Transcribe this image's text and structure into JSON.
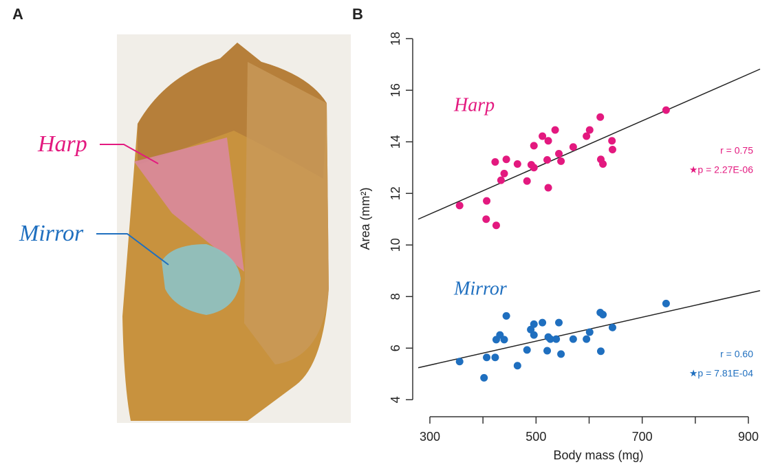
{
  "panel_a": {
    "label": "A",
    "callouts": [
      "Harp",
      "Mirror"
    ]
  },
  "chart_data": {
    "type": "scatter",
    "panel_label": "B",
    "x_label": "Body mass (mg)",
    "y_label": "Area (mm²)",
    "xlim": [
      278,
      922
    ],
    "xticks": [
      300,
      500,
      700,
      900
    ],
    "xminor_ticks": [
      400,
      600,
      800
    ],
    "ylim": [
      3.5,
      18.3
    ],
    "yticks": [
      4,
      6,
      8,
      10,
      12,
      14,
      16,
      18
    ],
    "series": [
      {
        "name": "Harp",
        "color": "#e3197f",
        "x": [
          356,
          406,
          407,
          425,
          423,
          440,
          434,
          444,
          465,
          483,
          491,
          496,
          496,
          512,
          523,
          521,
          523,
          536,
          543,
          547,
          570,
          595,
          601,
          621,
          622,
          626,
          643,
          644,
          745
        ],
        "values": [
          11.53,
          11.0,
          11.71,
          10.76,
          13.22,
          12.77,
          12.51,
          13.32,
          13.14,
          12.48,
          13.11,
          13.85,
          13.0,
          14.22,
          14.04,
          13.3,
          12.22,
          14.46,
          13.54,
          13.25,
          13.8,
          14.22,
          14.46,
          14.96,
          13.32,
          13.14,
          14.04,
          13.7,
          15.23
        ],
        "fit": {
          "x": [
            278,
            922
          ],
          "y": [
            11.0,
            16.82
          ]
        },
        "r_label": "r = 0.75",
        "p_label": "★p = 2.27E-06"
      },
      {
        "name": "Mirror",
        "color": "#1f6fbf",
        "x": [
          356,
          407,
          402,
          423,
          425,
          432,
          440,
          444,
          465,
          483,
          490,
          496,
          496,
          512,
          521,
          523,
          527,
          538,
          543,
          547,
          570,
          595,
          601,
          621,
          626,
          622,
          644,
          745
        ],
        "values": [
          5.48,
          5.64,
          4.85,
          5.64,
          6.33,
          6.51,
          6.33,
          7.25,
          5.32,
          5.93,
          6.72,
          6.93,
          6.51,
          6.99,
          5.9,
          6.43,
          6.35,
          6.35,
          6.99,
          5.77,
          6.35,
          6.35,
          6.62,
          7.38,
          7.3,
          5.88,
          6.8,
          7.73
        ],
        "fit": {
          "x": [
            278,
            922
          ],
          "y": [
            5.24,
            8.23
          ]
        },
        "r_label": "r = 0.60",
        "p_label": "★p = 7.81E-04"
      }
    ]
  }
}
